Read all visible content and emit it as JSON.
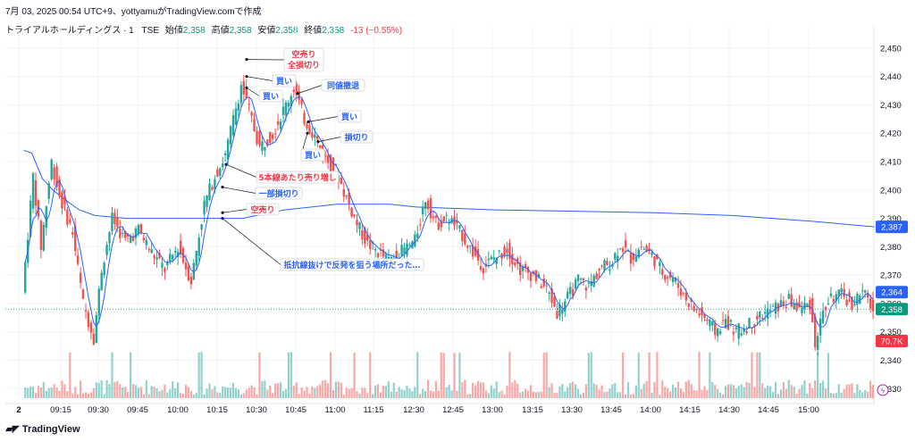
{
  "header": {
    "timestamp": "7月 03, 2025 00:54 UTC+9、yottyamuがTradingView.comで作成",
    "symbol": "トライアルホールディングス · 1 · TSE",
    "open_label": "始値",
    "open": "2,358",
    "high_label": "高値",
    "high": "2,358",
    "low_label": "安値",
    "low": "2,358",
    "close_label": "終値",
    "close": "2,358",
    "change": "-13 (−0.55%)"
  },
  "brand": {
    "text": "TradingView",
    "icon": "tradingview-logo-icon"
  },
  "price_tags": {
    "vwap": {
      "value": "2,387",
      "color": "#2962ff"
    },
    "ma": {
      "value": "2,364",
      "color": "#2962ff"
    },
    "last": {
      "value": "2,358",
      "color": "#089981"
    },
    "volume": {
      "value": "70.7K",
      "color": "#f23645"
    }
  },
  "colors": {
    "up": "#26a69a",
    "down": "#ef5350",
    "vwap": "#2962ff",
    "ma": "#2962ff",
    "annotation_red": "#f23645",
    "annotation_blue": "#2962ff"
  },
  "annotations": [
    {
      "text": "空売り\n全損切り",
      "color": "red"
    },
    {
      "text": "買い",
      "color": "blue"
    },
    {
      "text": "買い",
      "color": "blue"
    },
    {
      "text": "同値撤退",
      "color": "blue"
    },
    {
      "text": "買い",
      "color": "blue"
    },
    {
      "text": "損切り",
      "color": "blue"
    },
    {
      "text": "買い",
      "color": "blue"
    },
    {
      "text": "5本線あたり売り増し",
      "color": "red"
    },
    {
      "text": "一部損切り",
      "color": "blue"
    },
    {
      "text": "空売り",
      "color": "red"
    },
    {
      "text": "抵抗線抜けで反発を狙う場所だった…",
      "color": "blue"
    }
  ],
  "chart_data": {
    "type": "candlestick",
    "x_ticks": [
      "2",
      "09:15",
      "09:30",
      "09:45",
      "10:00",
      "10:15",
      "10:30",
      "10:45",
      "11:00",
      "11:15",
      "12:30",
      "12:45",
      "13:00",
      "13:15",
      "13:30",
      "13:45",
      "14:00",
      "14:15",
      "14:30",
      "14:45",
      "15:00"
    ],
    "y_ticks": [
      "2,330",
      "2,340",
      "2,350",
      "2,360",
      "2,370",
      "2,380",
      "2,390",
      "2,400",
      "2,410",
      "2,420",
      "2,430",
      "2,440",
      "2,450"
    ],
    "ylim": [
      2326,
      2455
    ],
    "close_path": [
      {
        "t": "09:01",
        "y": 2364
      },
      {
        "t": "09:05",
        "y": 2405
      },
      {
        "t": "09:08",
        "y": 2380
      },
      {
        "t": "09:12",
        "y": 2410
      },
      {
        "t": "09:15",
        "y": 2398
      },
      {
        "t": "09:20",
        "y": 2385
      },
      {
        "t": "09:24",
        "y": 2360
      },
      {
        "t": "09:28",
        "y": 2348
      },
      {
        "t": "09:31",
        "y": 2372
      },
      {
        "t": "09:35",
        "y": 2390
      },
      {
        "t": "09:40",
        "y": 2382
      },
      {
        "t": "09:45",
        "y": 2386
      },
      {
        "t": "09:50",
        "y": 2378
      },
      {
        "t": "09:55",
        "y": 2372
      },
      {
        "t": "10:00",
        "y": 2380
      },
      {
        "t": "10:05",
        "y": 2368
      },
      {
        "t": "10:10",
        "y": 2395
      },
      {
        "t": "10:14",
        "y": 2405
      },
      {
        "t": "10:18",
        "y": 2412
      },
      {
        "t": "10:21",
        "y": 2425
      },
      {
        "t": "10:24",
        "y": 2437
      },
      {
        "t": "10:27",
        "y": 2428
      },
      {
        "t": "10:31",
        "y": 2415
      },
      {
        "t": "10:36",
        "y": 2420
      },
      {
        "t": "10:40",
        "y": 2428
      },
      {
        "t": "10:44",
        "y": 2436
      },
      {
        "t": "10:48",
        "y": 2425
      },
      {
        "t": "10:52",
        "y": 2419
      },
      {
        "t": "10:56",
        "y": 2411
      },
      {
        "t": "11:00",
        "y": 2407
      },
      {
        "t": "11:04",
        "y": 2397
      },
      {
        "t": "11:08",
        "y": 2388
      },
      {
        "t": "11:12",
        "y": 2381
      },
      {
        "t": "11:16",
        "y": 2378
      },
      {
        "t": "11:20",
        "y": 2375
      },
      {
        "t": "12:30",
        "y": 2382
      },
      {
        "t": "12:34",
        "y": 2397
      },
      {
        "t": "12:38",
        "y": 2388
      },
      {
        "t": "12:43",
        "y": 2390
      },
      {
        "t": "12:48",
        "y": 2384
      },
      {
        "t": "12:52",
        "y": 2378
      },
      {
        "t": "12:56",
        "y": 2373
      },
      {
        "t": "13:00",
        "y": 2376
      },
      {
        "t": "13:05",
        "y": 2379
      },
      {
        "t": "13:10",
        "y": 2372
      },
      {
        "t": "13:15",
        "y": 2370
      },
      {
        "t": "13:20",
        "y": 2365
      },
      {
        "t": "13:24",
        "y": 2357
      },
      {
        "t": "13:28",
        "y": 2362
      },
      {
        "t": "13:32",
        "y": 2368
      },
      {
        "t": "13:36",
        "y": 2366
      },
      {
        "t": "13:40",
        "y": 2372
      },
      {
        "t": "13:45",
        "y": 2375
      },
      {
        "t": "13:48",
        "y": 2381
      },
      {
        "t": "13:52",
        "y": 2376
      },
      {
        "t": "13:56",
        "y": 2380
      },
      {
        "t": "14:00",
        "y": 2377
      },
      {
        "t": "14:04",
        "y": 2371
      },
      {
        "t": "14:08",
        "y": 2369
      },
      {
        "t": "14:12",
        "y": 2363
      },
      {
        "t": "14:16",
        "y": 2358
      },
      {
        "t": "14:20",
        "y": 2355
      },
      {
        "t": "14:24",
        "y": 2350
      },
      {
        "t": "14:28",
        "y": 2354
      },
      {
        "t": "14:32",
        "y": 2350
      },
      {
        "t": "14:36",
        "y": 2352
      },
      {
        "t": "14:40",
        "y": 2355
      },
      {
        "t": "14:44",
        "y": 2357
      },
      {
        "t": "14:48",
        "y": 2359
      },
      {
        "t": "14:52",
        "y": 2361
      },
      {
        "t": "14:56",
        "y": 2358
      },
      {
        "t": "15:00",
        "y": 2360
      },
      {
        "t": "15:02",
        "y": 2346
      },
      {
        "t": "15:05",
        "y": 2357
      },
      {
        "t": "15:08",
        "y": 2362
      },
      {
        "t": "15:12",
        "y": 2363
      },
      {
        "t": "15:16",
        "y": 2360
      },
      {
        "t": "15:20",
        "y": 2364
      },
      {
        "t": "15:24",
        "y": 2358
      }
    ],
    "vwap_path": [
      {
        "t": "09:01",
        "y": 2414
      },
      {
        "t": "09:04",
        "y": 2413
      },
      {
        "t": "09:08",
        "y": 2404
      },
      {
        "t": "09:12",
        "y": 2400
      },
      {
        "t": "09:16",
        "y": 2397
      },
      {
        "t": "09:22",
        "y": 2393
      },
      {
        "t": "09:28",
        "y": 2391
      },
      {
        "t": "09:40",
        "y": 2390
      },
      {
        "t": "10:10",
        "y": 2390
      },
      {
        "t": "10:24",
        "y": 2390
      },
      {
        "t": "10:40",
        "y": 2393
      },
      {
        "t": "11:00",
        "y": 2395
      },
      {
        "t": "11:20",
        "y": 2395
      },
      {
        "t": "12:30",
        "y": 2394
      },
      {
        "t": "13:00",
        "y": 2393
      },
      {
        "t": "14:00",
        "y": 2392
      },
      {
        "t": "14:30",
        "y": 2391
      },
      {
        "t": "15:00",
        "y": 2389
      },
      {
        "t": "15:24",
        "y": 2387
      }
    ]
  }
}
